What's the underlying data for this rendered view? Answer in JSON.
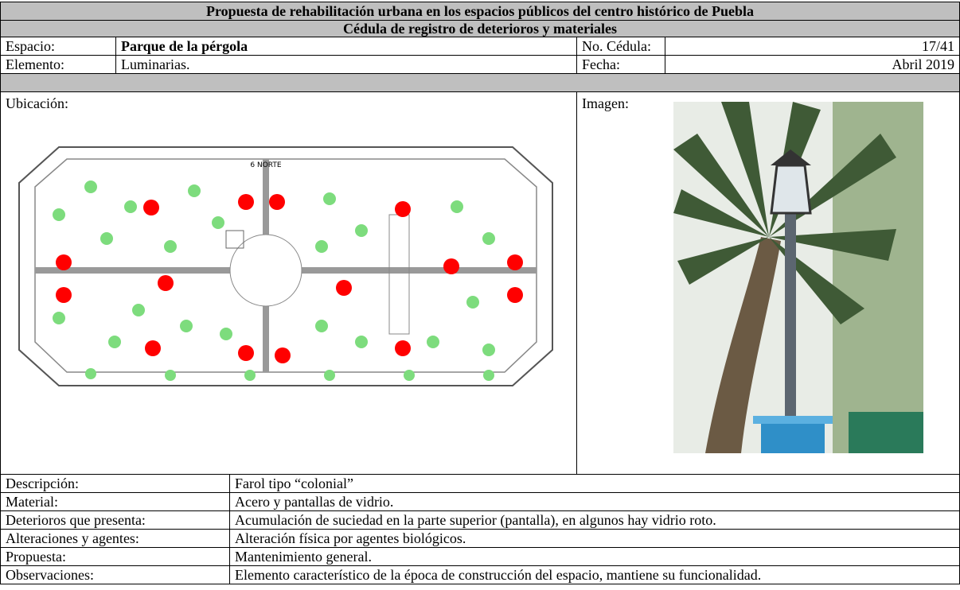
{
  "header": {
    "title": "Propuesta de rehabilitación urbana en los espacios públicos del centro histórico de Puebla",
    "subtitle": "Cédula de registro de deterioros y materiales"
  },
  "fields": [
    {
      "label": "Espacio:",
      "value": "Parque de la pérgola"
    },
    {
      "label": "No. Cédula:",
      "value": "17/41"
    },
    {
      "label": "Elemento:",
      "value": "Luminarias."
    },
    {
      "label": "Fecha:",
      "value": "Abril 2019"
    }
  ],
  "location": {
    "label": "Ubicación:",
    "street_label": "6 NORTE"
  },
  "image": {
    "label": "Imagen:"
  },
  "details": [
    {
      "label": "Descripción:",
      "value": "Farol tipo “colonial”"
    },
    {
      "label": "Material:",
      "value": "Acero y pantallas de vidrio."
    },
    {
      "label": "Deterioros que presenta:",
      "value": "Acumulación de suciedad en la parte superior (pantalla), en algunos hay vidrio roto."
    },
    {
      "label": "Alteraciones y agentes:",
      "value": "Alteración física por agentes biológicos."
    },
    {
      "label": "Propuesta:",
      "value": "Mantenimiento general."
    },
    {
      "label": "Observaciones:",
      "value": "Elemento característico de la época de construcción del espacio, mantiene su funcionalidad."
    }
  ]
}
